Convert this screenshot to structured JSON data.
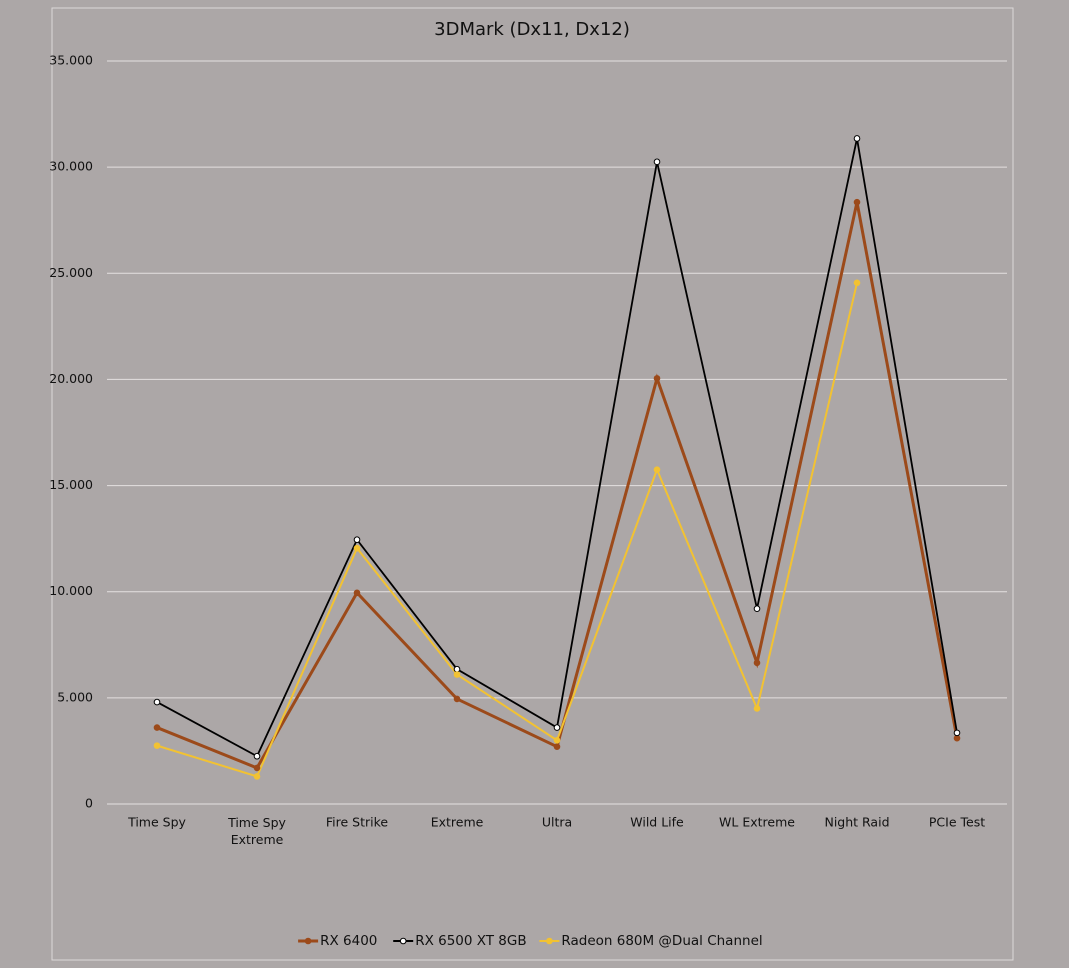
{
  "chart_data": {
    "type": "line",
    "title": "3DMark (Dx11, Dx12)",
    "categories": [
      "Time Spy",
      "Time Spy Extreme",
      "Fire Strike",
      "Extreme",
      "Ultra",
      "Wild Life",
      "WL Extreme",
      "Night Raid",
      "PCIe Test"
    ],
    "series": [
      {
        "name": "RX 6400",
        "color": "#9c4a1a",
        "values": [
          3600,
          1700,
          9950,
          4950,
          2700,
          20050,
          6650,
          28350,
          3100
        ]
      },
      {
        "name": "RX 6500 XT 8GB",
        "color": "#000000",
        "values": [
          4800,
          2250,
          12450,
          6350,
          3600,
          30250,
          9200,
          31350,
          3350
        ]
      },
      {
        "name": "Radeon 680M @Dual Channel",
        "color": "#f2c232",
        "values": [
          2750,
          1300,
          12050,
          6100,
          3000,
          15750,
          4500,
          24550,
          null
        ]
      }
    ],
    "ylim": [
      0,
      35000
    ],
    "yticks": [
      0,
      {
        "value": 5000,
        "label": "5.000"
      },
      {
        "value": 10000,
        "label": "10.000"
      },
      {
        "value": 15000,
        "label": "15.000"
      },
      {
        "value": 20000,
        "label": "20.000"
      },
      {
        "value": 25000,
        "label": "25.000"
      },
      {
        "value": 30000,
        "label": "30.000"
      },
      {
        "value": 35000,
        "label": "35.000"
      }
    ],
    "grid": true,
    "legend": "bottom"
  }
}
